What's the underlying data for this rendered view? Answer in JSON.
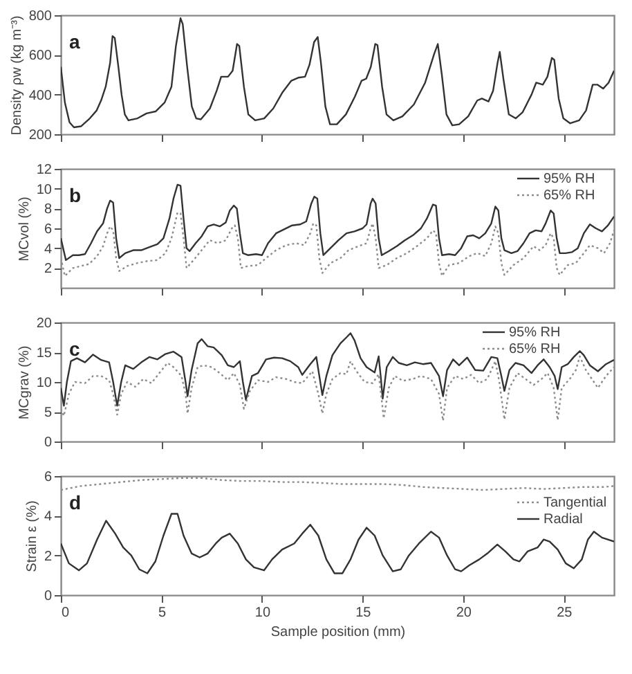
{
  "chart_data": [
    {
      "type": "line",
      "ylabel": "Density ρw (kg m⁻³)",
      "annotations": [
        "a"
      ],
      "xlim": [
        0,
        27.5
      ],
      "xticks": [
        0,
        5,
        10,
        15,
        20,
        25
      ],
      "ylim": [
        200,
        800
      ],
      "yticks": [
        200,
        400,
        600,
        800
      ],
      "tick_labels": "y",
      "series": [
        {
          "color": "#333333",
          "line_style": "solid",
          "x": [
            0,
            0.2,
            0.43,
            0.65,
            1.0,
            1.44,
            1.78,
            2.0,
            2.23,
            2.45,
            2.57,
            2.68,
            2.86,
            3.02,
            3.18,
            3.36,
            3.81,
            4.26,
            4.71,
            5.16,
            5.5,
            5.72,
            5.95,
            6.06,
            6.28,
            6.51,
            6.73,
            6.96,
            7.41,
            7.75,
            7.97,
            8.31,
            8.54,
            8.76,
            8.87,
            9.1,
            9.32,
            9.66,
            10.11,
            10.56,
            11.01,
            11.46,
            11.8,
            12.14,
            12.36,
            12.59,
            12.77,
            12.93,
            13.15,
            13.38,
            13.72,
            14.17,
            14.62,
            14.95,
            15.18,
            15.41,
            15.63,
            15.74,
            15.97,
            16.19,
            16.53,
            16.98,
            17.55,
            18.11,
            18.56,
            18.74,
            18.94,
            19.17,
            19.46,
            19.8,
            20.25,
            20.7,
            20.93,
            21.26,
            21.49,
            21.71,
            21.82,
            22.0,
            22.27,
            22.61,
            22.95,
            23.4,
            23.63,
            23.96,
            24.19,
            24.41,
            24.53,
            24.75,
            24.98,
            25.32,
            25.77,
            26.11,
            26.44,
            26.67,
            26.96,
            27.23,
            27.5
          ],
          "values": [
            540,
            360,
            260,
            235,
            240,
            280,
            320,
            370,
            440,
            560,
            695,
            685,
            540,
            400,
            300,
            270,
            280,
            305,
            315,
            360,
            440,
            645,
            785,
            755,
            540,
            340,
            280,
            275,
            330,
            420,
            490,
            490,
            520,
            655,
            645,
            440,
            300,
            270,
            280,
            330,
            410,
            470,
            485,
            490,
            550,
            665,
            690,
            560,
            340,
            250,
            250,
            300,
            390,
            470,
            480,
            540,
            655,
            650,
            440,
            300,
            270,
            290,
            350,
            460,
            605,
            655,
            500,
            300,
            245,
            250,
            290,
            370,
            380,
            365,
            420,
            560,
            615,
            480,
            300,
            280,
            310,
            400,
            460,
            450,
            490,
            585,
            575,
            380,
            280,
            255,
            270,
            320,
            450,
            450,
            430,
            460,
            520
          ]
        }
      ]
    },
    {
      "type": "line",
      "ylabel": "MCvol (%)",
      "annotations": [
        "b"
      ],
      "xlim": [
        0,
        27.5
      ],
      "xticks": [
        0,
        5,
        10,
        15,
        20,
        25
      ],
      "ylim": [
        0,
        12
      ],
      "yticks": [
        2,
        4,
        6,
        8,
        10,
        12
      ],
      "tick_labels": "y",
      "legend": "top right",
      "series": [
        {
          "name": "95% RH",
          "color": "#333333",
          "line_style": "solid",
          "x": [
            0,
            0.25,
            0.6,
            0.9,
            1.2,
            1.5,
            1.8,
            2.1,
            2.3,
            2.45,
            2.6,
            2.75,
            2.9,
            3.2,
            3.6,
            4.0,
            4.4,
            4.8,
            5.1,
            5.4,
            5.6,
            5.8,
            5.95,
            6.1,
            6.25,
            6.4,
            6.7,
            7.0,
            7.3,
            7.6,
            7.9,
            8.2,
            8.4,
            8.6,
            8.75,
            8.9,
            9.05,
            9.3,
            9.7,
            10.0,
            10.3,
            10.7,
            11.1,
            11.5,
            11.9,
            12.2,
            12.45,
            12.6,
            12.75,
            12.9,
            13.05,
            13.4,
            13.8,
            14.2,
            14.6,
            15.0,
            15.2,
            15.4,
            15.5,
            15.65,
            15.8,
            15.95,
            16.3,
            16.7,
            17.1,
            17.5,
            17.9,
            18.2,
            18.5,
            18.65,
            18.8,
            18.95,
            19.3,
            19.6,
            19.9,
            20.2,
            20.5,
            20.8,
            21.1,
            21.4,
            21.6,
            21.75,
            21.9,
            22.05,
            22.4,
            22.7,
            23.0,
            23.3,
            23.6,
            23.9,
            24.1,
            24.35,
            24.5,
            24.65,
            24.8,
            25.1,
            25.4,
            25.7,
            26.0,
            26.3,
            26.6,
            26.9,
            27.2,
            27.5
          ],
          "values": [
            5.0,
            2.8,
            3.3,
            3.3,
            3.4,
            4.5,
            5.7,
            6.5,
            8.0,
            8.8,
            8.6,
            5.0,
            3.0,
            3.5,
            3.8,
            3.8,
            4.1,
            4.4,
            5.0,
            7.0,
            9.0,
            10.4,
            10.3,
            7.0,
            4.0,
            3.7,
            4.5,
            5.2,
            6.2,
            6.4,
            6.2,
            6.6,
            7.8,
            8.3,
            8.0,
            5.5,
            3.5,
            3.3,
            3.4,
            3.3,
            4.5,
            5.5,
            5.9,
            6.3,
            6.4,
            6.7,
            8.5,
            9.2,
            9.0,
            5.5,
            3.3,
            4.0,
            4.8,
            5.5,
            5.7,
            6.0,
            6.4,
            8.5,
            9.0,
            8.5,
            5.0,
            3.3,
            3.7,
            4.2,
            4.8,
            5.3,
            6.0,
            7.0,
            8.4,
            8.3,
            5.0,
            3.3,
            3.4,
            3.3,
            4.0,
            5.2,
            5.3,
            5.0,
            5.5,
            6.5,
            8.2,
            7.8,
            5.0,
            3.8,
            3.5,
            3.7,
            4.5,
            5.5,
            5.8,
            5.7,
            6.5,
            7.8,
            7.5,
            5.0,
            3.5,
            3.5,
            3.6,
            4.0,
            5.5,
            6.4,
            6.0,
            5.7,
            6.3,
            7.2
          ]
        },
        {
          "name": "65% RH",
          "color": "#8c8c8c",
          "line_style": "dotted",
          "x": [
            0,
            0.2,
            0.6,
            1.0,
            1.4,
            1.8,
            2.1,
            2.3,
            2.45,
            2.6,
            2.75,
            2.9,
            3.3,
            3.8,
            4.3,
            4.8,
            5.2,
            5.5,
            5.8,
            5.95,
            6.1,
            6.25,
            6.6,
            7.0,
            7.4,
            7.8,
            8.2,
            8.5,
            8.65,
            8.8,
            8.95,
            9.3,
            9.8,
            10.2,
            10.7,
            11.2,
            11.7,
            12.1,
            12.4,
            12.55,
            12.7,
            12.85,
            13.0,
            13.4,
            13.9,
            14.3,
            14.8,
            15.2,
            15.4,
            15.5,
            15.65,
            15.8,
            16.2,
            16.7,
            17.2,
            17.7,
            18.2,
            18.5,
            18.65,
            18.8,
            18.95,
            19.3,
            19.8,
            20.3,
            20.7,
            21.1,
            21.4,
            21.6,
            21.75,
            21.9,
            22.05,
            22.5,
            23.0,
            23.5,
            23.8,
            24.1,
            24.35,
            24.5,
            24.65,
            24.8,
            25.2,
            25.6,
            26.0,
            26.3,
            26.7,
            27.0,
            27.3,
            27.5
          ],
          "values": [
            3.0,
            1.2,
            2.0,
            2.2,
            2.4,
            3.2,
            4.2,
            5.5,
            6.2,
            5.8,
            3.0,
            1.7,
            2.2,
            2.5,
            2.7,
            2.8,
            3.5,
            5.0,
            7.6,
            7.5,
            5.0,
            2.0,
            2.8,
            3.8,
            4.8,
            4.5,
            4.8,
            6.0,
            6.3,
            5.0,
            2.0,
            2.2,
            2.3,
            3.0,
            3.8,
            4.3,
            4.5,
            4.3,
            5.5,
            6.5,
            6.3,
            3.0,
            1.5,
            2.5,
            3.0,
            3.8,
            4.2,
            4.5,
            6.0,
            6.5,
            5.0,
            2.0,
            2.3,
            3.0,
            3.5,
            4.2,
            5.0,
            5.8,
            5.5,
            2.5,
            1.2,
            2.3,
            2.5,
            3.2,
            3.5,
            3.2,
            4.5,
            6.2,
            5.5,
            2.5,
            1.3,
            2.3,
            3.0,
            4.2,
            3.8,
            4.3,
            5.5,
            5.0,
            2.0,
            1.3,
            2.3,
            2.5,
            3.5,
            4.3,
            4.0,
            3.5,
            4.5,
            5.8
          ]
        }
      ]
    },
    {
      "type": "line",
      "ylabel": "MCgrav (%)",
      "annotations": [
        "c"
      ],
      "xlim": [
        0,
        27.5
      ],
      "xticks": [
        0,
        5,
        10,
        15,
        20,
        25
      ],
      "ylim": [
        0,
        20
      ],
      "yticks": [
        0,
        5,
        10,
        15,
        20
      ],
      "tick_labels": "y",
      "legend": "top right",
      "series": [
        {
          "name": "95% RH",
          "color": "#333333",
          "line_style": "solid",
          "x": [
            0,
            0.15,
            0.3,
            0.5,
            0.8,
            1.2,
            1.6,
            2.0,
            2.4,
            2.6,
            2.8,
            3.0,
            3.2,
            3.6,
            4.0,
            4.4,
            4.8,
            5.2,
            5.6,
            6.0,
            6.2,
            6.3,
            6.5,
            6.8,
            7.0,
            7.3,
            7.6,
            8.0,
            8.3,
            8.6,
            8.9,
            9.05,
            9.2,
            9.5,
            9.8,
            10.2,
            10.6,
            11.0,
            11.4,
            11.8,
            12.0,
            12.4,
            12.7,
            12.85,
            13.0,
            13.2,
            13.5,
            13.9,
            14.2,
            14.4,
            14.6,
            14.9,
            15.2,
            15.6,
            15.8,
            15.9,
            16.0,
            16.2,
            16.5,
            16.8,
            17.2,
            17.6,
            18.0,
            18.4,
            18.8,
            19.0,
            19.2,
            19.5,
            19.8,
            20.2,
            20.6,
            21.0,
            21.4,
            21.7,
            21.9,
            22.05,
            22.3,
            22.6,
            23.0,
            23.4,
            23.7,
            24.0,
            24.3,
            24.55,
            24.7,
            24.9,
            25.2,
            25.5,
            25.8,
            26.0,
            26.3,
            26.7,
            27.1,
            27.5
          ],
          "values": [
            9,
            6.0,
            10,
            13.5,
            14,
            13.3,
            14.6,
            13.7,
            13.3,
            10,
            6.0,
            10,
            12.8,
            12.2,
            13.3,
            14.2,
            13.8,
            14.7,
            15.1,
            14.2,
            10,
            7.6,
            12,
            16.5,
            17.2,
            16.0,
            15.8,
            14.5,
            12.8,
            12.5,
            13.5,
            10,
            7.0,
            11,
            11.5,
            13.8,
            14.1,
            14.0,
            13.5,
            12.5,
            11.2,
            13.0,
            14.2,
            11,
            7.8,
            11,
            14.5,
            16.5,
            17.5,
            18.2,
            17,
            14,
            12.5,
            11.6,
            14.3,
            11,
            7.2,
            12.5,
            14.2,
            13.2,
            12.8,
            13.3,
            13.0,
            13.2,
            11,
            7.6,
            12,
            13.8,
            12.8,
            14.1,
            12.0,
            11.9,
            14.2,
            14.0,
            11,
            8.5,
            12,
            13.2,
            12.8,
            11.5,
            12.8,
            13.8,
            12.5,
            11,
            8.8,
            12.5,
            13,
            14.2,
            15.2,
            14.5,
            12.8,
            11.8,
            13.0,
            13.7
          ]
        },
        {
          "name": "65% RH",
          "color": "#8c8c8c",
          "line_style": "dotted",
          "x": [
            0,
            0.15,
            0.4,
            0.7,
            1.2,
            1.6,
            2.0,
            2.4,
            2.6,
            2.8,
            3.0,
            3.3,
            3.7,
            4.1,
            4.5,
            4.9,
            5.3,
            5.6,
            6.0,
            6.2,
            6.3,
            6.5,
            6.8,
            7.1,
            7.5,
            7.9,
            8.3,
            8.6,
            8.9,
            9.1,
            9.4,
            9.8,
            10.3,
            10.7,
            11.2,
            11.6,
            12.0,
            12.5,
            12.8,
            13.0,
            13.2,
            13.5,
            13.9,
            14.2,
            14.4,
            14.7,
            15.1,
            15.5,
            15.8,
            15.95,
            16.05,
            16.3,
            16.6,
            17.0,
            17.5,
            17.9,
            18.4,
            18.8,
            19.0,
            19.2,
            19.6,
            20.0,
            20.4,
            20.8,
            21.2,
            21.6,
            21.8,
            22.05,
            22.3,
            22.7,
            23.1,
            23.5,
            23.9,
            24.2,
            24.5,
            24.7,
            24.9,
            25.3,
            25.6,
            25.8,
            26.1,
            26.4,
            26.7,
            27.1,
            27.5
          ],
          "values": [
            5.5,
            4.3,
            8,
            10,
            9.8,
            11,
            11,
            10.3,
            8,
            4.5,
            8,
            10,
            9.2,
            10.5,
            9.8,
            11.5,
            13.2,
            12.5,
            11,
            8,
            4.7,
            9,
            12.5,
            12.8,
            12.5,
            11.5,
            10.3,
            11.5,
            9.5,
            5.5,
            8.5,
            10.3,
            10.0,
            10.8,
            10.5,
            10.0,
            9.8,
            11.8,
            8,
            4.7,
            8,
            10.5,
            11.5,
            11.3,
            13.5,
            11.8,
            10.0,
            9.8,
            11.3,
            7,
            3.9,
            9,
            11,
            10.2,
            10.5,
            11.0,
            10.5,
            8,
            3.5,
            9,
            11,
            10.5,
            11.2,
            9.8,
            10.5,
            13.5,
            10,
            3.7,
            9,
            11.5,
            10.5,
            9.5,
            10.5,
            11.5,
            9,
            3.6,
            9,
            10.5,
            12.0,
            14.3,
            12,
            10.5,
            9.0,
            11.0,
            12.5
          ]
        }
      ]
    },
    {
      "type": "line",
      "ylabel": "Strain ε (%)",
      "xlabel": "Sample position (mm)",
      "annotations": [
        "d"
      ],
      "xlim": [
        0,
        27.5
      ],
      "xticks": [
        0,
        5,
        10,
        15,
        20,
        25
      ],
      "ylim": [
        0,
        6
      ],
      "yticks": [
        0,
        2,
        4,
        6
      ],
      "legend": "top right",
      "series": [
        {
          "name": "Tangential",
          "color": "#8c8c8c",
          "line_style": "dotted",
          "x": [
            0,
            1,
            2,
            3,
            4,
            5,
            6,
            7,
            8,
            9,
            10,
            11,
            12,
            13,
            14,
            15,
            16,
            17,
            18,
            19,
            20,
            21,
            22,
            23,
            24,
            25,
            26,
            27,
            27.5
          ],
          "values": [
            5.3,
            5.5,
            5.6,
            5.7,
            5.8,
            5.85,
            5.9,
            5.9,
            5.8,
            5.75,
            5.75,
            5.7,
            5.7,
            5.65,
            5.6,
            5.6,
            5.6,
            5.55,
            5.45,
            5.4,
            5.35,
            5.3,
            5.35,
            5.4,
            5.35,
            5.4,
            5.45,
            5.45,
            5.5
          ]
        },
        {
          "name": "Radial",
          "color": "#333333",
          "line_style": "solid",
          "x": [
            0,
            0.4,
            0.9,
            1.3,
            1.8,
            2.25,
            2.7,
            3.1,
            3.5,
            3.9,
            4.3,
            4.7,
            5.1,
            5.5,
            5.8,
            6.1,
            6.5,
            6.9,
            7.3,
            7.7,
            8.0,
            8.4,
            8.8,
            9.2,
            9.6,
            10.1,
            10.5,
            11.0,
            11.6,
            12.0,
            12.4,
            12.8,
            13.2,
            13.6,
            14.0,
            14.4,
            14.8,
            15.2,
            15.6,
            16.0,
            16.5,
            16.9,
            17.3,
            17.8,
            18.4,
            18.8,
            19.2,
            19.6,
            19.9,
            20.3,
            20.8,
            21.2,
            21.7,
            22.1,
            22.5,
            22.8,
            23.2,
            23.7,
            24.0,
            24.3,
            24.7,
            25.1,
            25.5,
            25.9,
            26.2,
            26.5,
            26.9,
            27.5
          ],
          "values": [
            2.6,
            1.6,
            1.25,
            1.6,
            2.8,
            3.75,
            3.1,
            2.4,
            2.0,
            1.3,
            1.1,
            1.7,
            3.0,
            4.1,
            4.1,
            3.0,
            2.1,
            1.9,
            2.1,
            2.6,
            2.9,
            3.1,
            2.6,
            1.8,
            1.4,
            1.25,
            1.8,
            2.3,
            2.6,
            3.1,
            3.55,
            3.0,
            1.8,
            1.1,
            1.1,
            1.8,
            2.8,
            3.4,
            3.0,
            2.0,
            1.2,
            1.3,
            2.0,
            2.6,
            3.2,
            2.9,
            2.0,
            1.3,
            1.2,
            1.5,
            1.8,
            2.1,
            2.55,
            2.2,
            1.8,
            1.7,
            2.2,
            2.4,
            2.8,
            2.7,
            2.3,
            1.6,
            1.35,
            1.8,
            2.8,
            3.2,
            2.9,
            2.7
          ]
        }
      ]
    }
  ]
}
